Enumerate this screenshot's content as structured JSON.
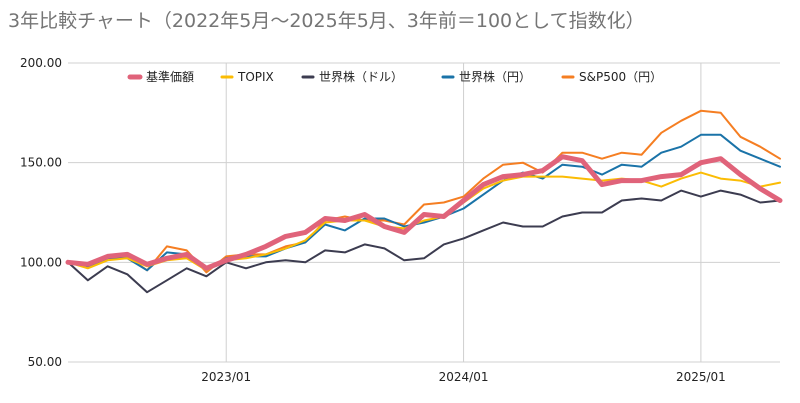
{
  "chart_data": {
    "type": "line",
    "title": "3年比較チャート（2022年5月～2025年5月、3年前＝100として指数化）",
    "xlabel": "",
    "ylabel": "",
    "ylim": [
      50,
      200
    ],
    "yticks": [
      "200.00",
      "150.00",
      "100.00",
      "50.00"
    ],
    "xticks": [
      "2023/01",
      "2024/01",
      "2025/01"
    ],
    "grid": true,
    "legend_position": "top",
    "x": [
      "2022/05",
      "2022/06",
      "2022/07",
      "2022/08",
      "2022/09",
      "2022/10",
      "2022/11",
      "2022/12",
      "2023/01",
      "2023/02",
      "2023/03",
      "2023/04",
      "2023/05",
      "2023/06",
      "2023/07",
      "2023/08",
      "2023/09",
      "2023/10",
      "2023/11",
      "2023/12",
      "2024/01",
      "2024/02",
      "2024/03",
      "2024/04",
      "2024/05",
      "2024/06",
      "2024/07",
      "2024/08",
      "2024/09",
      "2024/10",
      "2024/11",
      "2024/12",
      "2025/01",
      "2025/02",
      "2025/03",
      "2025/04",
      "2025/05"
    ],
    "series": [
      {
        "name": "基準価額",
        "color": "#e0637a",
        "values": [
          100,
          99,
          103,
          104,
          99,
          102,
          104,
          97,
          101,
          104,
          108,
          113,
          115,
          122,
          121,
          124,
          118,
          115,
          124,
          123,
          131,
          139,
          143,
          144,
          146,
          153,
          151,
          139,
          141,
          141,
          143,
          144,
          150,
          152,
          144,
          137,
          131
        ]
      },
      {
        "name": "TOPIX",
        "color": "#fbbc04",
        "values": [
          100,
          97,
          101,
          102,
          98,
          101,
          102,
          96,
          101,
          102,
          104,
          107,
          111,
          120,
          121,
          121,
          118,
          117,
          121,
          123,
          130,
          137,
          141,
          143,
          143,
          143,
          142,
          141,
          142,
          141,
          138,
          142,
          145,
          142,
          141,
          138,
          140
        ]
      },
      {
        "name": "世界株（ドル）",
        "color": "#3c3c50",
        "values": [
          100,
          91,
          98,
          94,
          85,
          91,
          97,
          93,
          100,
          97,
          100,
          101,
          100,
          106,
          105,
          109,
          107,
          101,
          102,
          109,
          112,
          116,
          120,
          118,
          118,
          123,
          125,
          125,
          131,
          132,
          131,
          136,
          133,
          136,
          134,
          130,
          131
        ]
      },
      {
        "name": "世界株（円）",
        "color": "#1a73a8",
        "values": [
          100,
          98,
          102,
          102,
          96,
          105,
          104,
          96,
          102,
          103,
          103,
          107,
          110,
          119,
          116,
          122,
          122,
          118,
          120,
          123,
          127,
          134,
          141,
          145,
          142,
          149,
          148,
          144,
          149,
          148,
          155,
          158,
          164,
          164,
          156,
          152,
          148
        ]
      },
      {
        "name": "S&P500（円）",
        "color": "#f57e22",
        "values": [
          100,
          98,
          103,
          103,
          96,
          108,
          106,
          95,
          103,
          104,
          104,
          108,
          110,
          121,
          123,
          121,
          121,
          119,
          129,
          130,
          133,
          142,
          149,
          150,
          145,
          155,
          155,
          152,
          155,
          154,
          165,
          171,
          176,
          175,
          163,
          158,
          152
        ]
      }
    ]
  }
}
